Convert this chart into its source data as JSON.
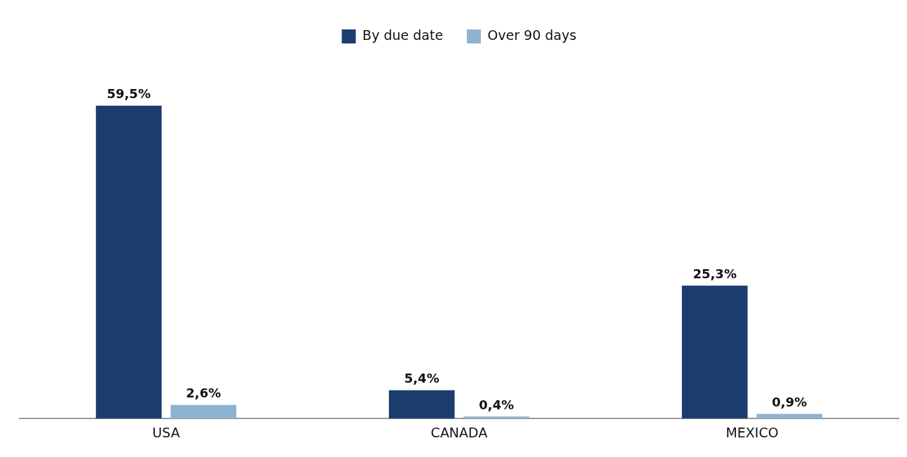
{
  "chart_data": {
    "type": "bar",
    "categories": [
      "USA",
      "CANADA",
      "MEXICO"
    ],
    "series": [
      {
        "name": "By due date",
        "color": "#1b3d6e",
        "values": [
          59.5,
          5.4,
          25.3
        ],
        "value_labels": [
          "59,5%",
          "5,4%",
          "25,3%"
        ]
      },
      {
        "name": "Over 90 days",
        "color": "#8db3d3",
        "values": [
          2.6,
          0.4,
          0.9
        ],
        "value_labels": [
          "2,6%",
          "0,4%",
          "0,9%"
        ]
      }
    ],
    "legend": "top",
    "grid": false
  }
}
